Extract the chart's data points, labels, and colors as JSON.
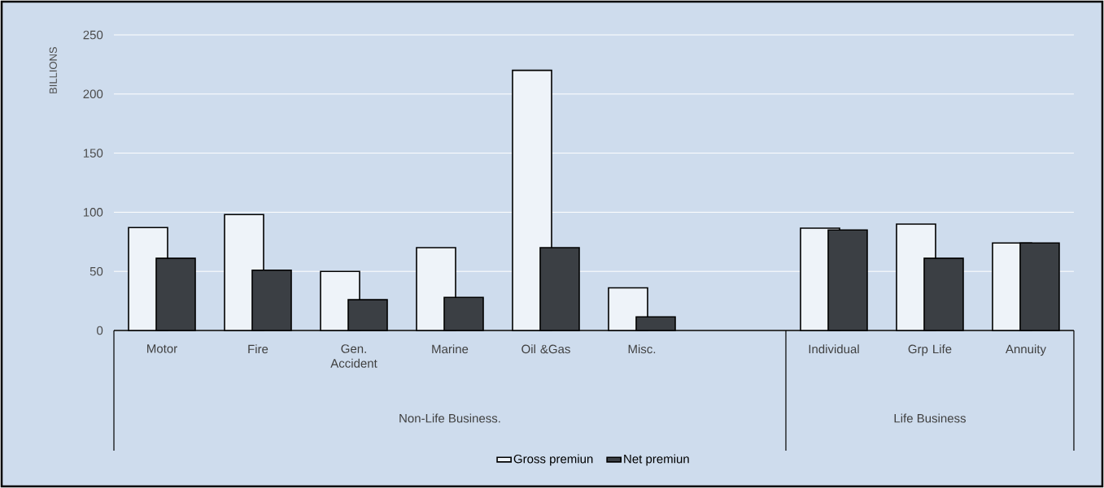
{
  "chart_data": {
    "type": "bar",
    "categories": [
      "Motor",
      "Fire",
      "Gen. Accident",
      "Marine",
      "Oil &Gas",
      "Misc.",
      null,
      "Individual",
      "Grp Life",
      "Annuity"
    ],
    "series": [
      {
        "name": "Gross premiun",
        "color": "#eef3f9",
        "values": [
          87,
          98,
          50,
          70,
          220,
          36,
          null,
          86.5,
          90,
          74
        ]
      },
      {
        "name": "Net premiun",
        "color": "#3b3f44",
        "values": [
          61,
          51,
          26,
          28,
          70,
          11.5,
          null,
          85,
          61,
          74
        ]
      }
    ],
    "ylabel": "BILLIONS",
    "ylim": [
      0,
      250
    ],
    "yticks": [
      0,
      50,
      100,
      150,
      200,
      250
    ],
    "grid": "y",
    "legend": "bottom",
    "annotations": [
      "Non-Life Business.",
      "Life Business"
    ]
  }
}
